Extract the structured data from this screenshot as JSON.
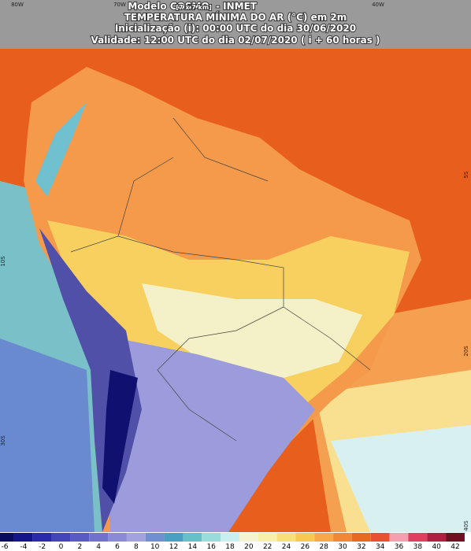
{
  "header": {
    "model": "Modelo COSMO",
    "resolution": "[7 x 7 km]",
    "source": "- INMET",
    "title": "TEMPERATURA MÍNIMA DO AR (°C) em 2m",
    "initialization": "Inicialização (i): 00:00 UTC do dia 30/06/2020",
    "validity": "Validade: 12:00 UTC do dia 02/07/2020 ( i + 60 horas )"
  },
  "longitude_labels": [
    "80W",
    "70W",
    "40W"
  ],
  "latitude_labels_left": [
    "10S",
    "30S"
  ],
  "latitude_labels_right": [
    "5S",
    "20S",
    "40S"
  ],
  "legend": {
    "labels": [
      "-6",
      "-4",
      "-2",
      "0",
      "2",
      "4",
      "6",
      "8",
      "10",
      "12",
      "14",
      "16",
      "18",
      "20",
      "22",
      "24",
      "26",
      "28",
      "30",
      "32",
      "34",
      "36",
      "38",
      "40",
      "42"
    ],
    "colors": [
      "#0b0b60",
      "#15158a",
      "#2a2aaa",
      "#4444bb",
      "#5a5ac4",
      "#7272cc",
      "#8a8ad6",
      "#a2a2e0",
      "#6f8fd0",
      "#4aa0c0",
      "#66c0c8",
      "#98dcdc",
      "#c8f0f0",
      "#f4f4d0",
      "#f8f0a8",
      "#f8e078",
      "#f8c850",
      "#f8a848",
      "#f08838",
      "#e86a20",
      "#e85030",
      "#f4a0b0",
      "#e04060",
      "#b02040",
      "#701020"
    ]
  }
}
